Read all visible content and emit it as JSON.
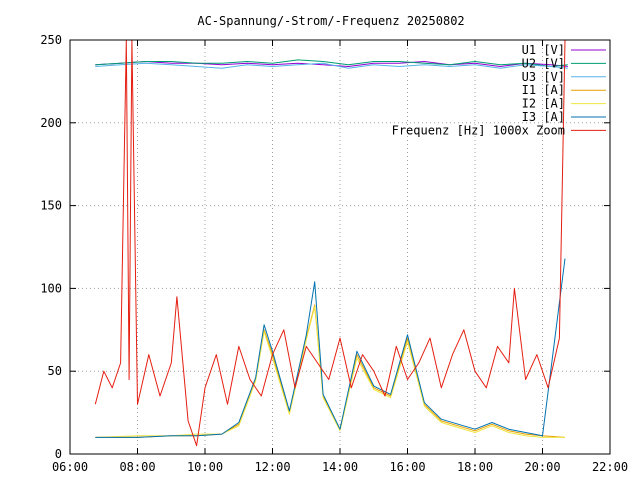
{
  "chart_data": {
    "type": "line",
    "title": "AC-Spannung/-Strom/-Frequenz 20250802",
    "xlabel": "",
    "ylabel": "",
    "x_range": [
      "06:00",
      "22:00"
    ],
    "ylim": [
      0,
      250
    ],
    "x_ticks": [
      "06:00",
      "08:00",
      "10:00",
      "12:00",
      "14:00",
      "16:00",
      "18:00",
      "20:00",
      "22:00"
    ],
    "y_ticks": [
      0,
      50,
      100,
      150,
      200,
      250
    ],
    "grid": true,
    "legend_position": "top-right",
    "x_data_span": [
      "06:45",
      "20:45"
    ],
    "series": [
      {
        "name": "U1 [V]",
        "color": "#9400d3",
        "points": [
          [
            "06:45",
            235
          ],
          [
            "07:30",
            236
          ],
          [
            "08:15",
            237
          ],
          [
            "09:00",
            236
          ],
          [
            "09:45",
            236
          ],
          [
            "10:30",
            235
          ],
          [
            "11:15",
            236
          ],
          [
            "12:00",
            235
          ],
          [
            "12:45",
            236
          ],
          [
            "13:30",
            235
          ],
          [
            "14:15",
            234
          ],
          [
            "15:00",
            236
          ],
          [
            "15:45",
            236
          ],
          [
            "16:30",
            237
          ],
          [
            "17:15",
            235
          ],
          [
            "18:00",
            236
          ],
          [
            "18:45",
            234
          ],
          [
            "19:30",
            236
          ],
          [
            "20:15",
            235
          ],
          [
            "20:45",
            234
          ]
        ]
      },
      {
        "name": "U2 [V]",
        "color": "#009e73",
        "points": [
          [
            "06:45",
            235
          ],
          [
            "07:30",
            236
          ],
          [
            "08:15",
            237
          ],
          [
            "09:00",
            237
          ],
          [
            "09:45",
            236
          ],
          [
            "10:30",
            236
          ],
          [
            "11:15",
            237
          ],
          [
            "12:00",
            236
          ],
          [
            "12:45",
            238
          ],
          [
            "13:30",
            237
          ],
          [
            "14:15",
            235
          ],
          [
            "15:00",
            237
          ],
          [
            "15:45",
            237
          ],
          [
            "16:30",
            236
          ],
          [
            "17:15",
            235
          ],
          [
            "18:00",
            237
          ],
          [
            "18:45",
            235
          ],
          [
            "19:30",
            236
          ],
          [
            "20:15",
            234
          ],
          [
            "20:45",
            235
          ]
        ]
      },
      {
        "name": "U3 [V]",
        "color": "#56b4e9",
        "points": [
          [
            "06:45",
            234
          ],
          [
            "07:30",
            235
          ],
          [
            "08:15",
            236
          ],
          [
            "09:00",
            235
          ],
          [
            "09:45",
            234
          ],
          [
            "10:30",
            233
          ],
          [
            "11:15",
            235
          ],
          [
            "12:00",
            234
          ],
          [
            "12:45",
            235
          ],
          [
            "13:30",
            236
          ],
          [
            "14:15",
            233
          ],
          [
            "15:00",
            235
          ],
          [
            "15:45",
            234
          ],
          [
            "16:30",
            235
          ],
          [
            "17:15",
            234
          ],
          [
            "18:00",
            235
          ],
          [
            "18:45",
            233
          ],
          [
            "19:30",
            235
          ],
          [
            "20:15",
            234
          ],
          [
            "20:45",
            233
          ]
        ]
      },
      {
        "name": "I1 [A]",
        "color": "#e69f00",
        "points": [
          [
            "06:45",
            10
          ],
          [
            "08:00",
            10
          ],
          [
            "09:00",
            11
          ],
          [
            "09:45",
            11
          ],
          [
            "10:30",
            12
          ],
          [
            "11:00",
            18
          ],
          [
            "11:30",
            45
          ],
          [
            "11:45",
            75
          ],
          [
            "12:00",
            60
          ],
          [
            "12:30",
            25
          ],
          [
            "13:00",
            70
          ],
          [
            "13:15",
            90
          ],
          [
            "13:30",
            35
          ],
          [
            "14:00",
            15
          ],
          [
            "14:30",
            60
          ],
          [
            "15:00",
            40
          ],
          [
            "15:30",
            35
          ],
          [
            "16:00",
            70
          ],
          [
            "16:30",
            30
          ],
          [
            "17:00",
            20
          ],
          [
            "17:30",
            17
          ],
          [
            "18:00",
            14
          ],
          [
            "18:30",
            18
          ],
          [
            "19:00",
            14
          ],
          [
            "19:30",
            12
          ],
          [
            "20:00",
            11
          ],
          [
            "20:40",
            10
          ]
        ]
      },
      {
        "name": "I2 [A]",
        "color": "#f0e442",
        "points": [
          [
            "06:45",
            10
          ],
          [
            "08:00",
            11
          ],
          [
            "09:00",
            11
          ],
          [
            "09:45",
            12
          ],
          [
            "10:30",
            12
          ],
          [
            "11:00",
            17
          ],
          [
            "11:30",
            44
          ],
          [
            "11:45",
            74
          ],
          [
            "12:00",
            58
          ],
          [
            "12:30",
            24
          ],
          [
            "13:00",
            69
          ],
          [
            "13:15",
            89
          ],
          [
            "13:30",
            34
          ],
          [
            "14:00",
            14
          ],
          [
            "14:30",
            58
          ],
          [
            "15:00",
            39
          ],
          [
            "15:30",
            34
          ],
          [
            "16:00",
            68
          ],
          [
            "16:30",
            29
          ],
          [
            "17:00",
            19
          ],
          [
            "17:30",
            16
          ],
          [
            "18:00",
            13
          ],
          [
            "18:30",
            17
          ],
          [
            "19:00",
            13
          ],
          [
            "19:30",
            11
          ],
          [
            "20:00",
            10
          ],
          [
            "20:40",
            10
          ]
        ]
      },
      {
        "name": "I3 [A]",
        "color": "#0072b2",
        "points": [
          [
            "06:45",
            10
          ],
          [
            "08:00",
            10
          ],
          [
            "09:00",
            11
          ],
          [
            "09:45",
            11
          ],
          [
            "10:30",
            12
          ],
          [
            "11:00",
            19
          ],
          [
            "11:30",
            46
          ],
          [
            "11:45",
            78
          ],
          [
            "12:00",
            62
          ],
          [
            "12:30",
            26
          ],
          [
            "13:00",
            72
          ],
          [
            "13:15",
            104
          ],
          [
            "13:30",
            36
          ],
          [
            "14:00",
            15
          ],
          [
            "14:30",
            62
          ],
          [
            "15:00",
            41
          ],
          [
            "15:30",
            36
          ],
          [
            "16:00",
            72
          ],
          [
            "16:30",
            31
          ],
          [
            "17:00",
            21
          ],
          [
            "17:30",
            18
          ],
          [
            "18:00",
            15
          ],
          [
            "18:30",
            19
          ],
          [
            "19:00",
            15
          ],
          [
            "19:30",
            13
          ],
          [
            "20:00",
            11
          ],
          [
            "20:40",
            118
          ]
        ]
      },
      {
        "name": "Frequenz [Hz] 1000x Zoom",
        "color": "#e51e10",
        "points": [
          [
            "06:45",
            30
          ],
          [
            "07:00",
            50
          ],
          [
            "07:15",
            40
          ],
          [
            "07:30",
            55
          ],
          [
            "07:40",
            250
          ],
          [
            "07:45",
            45
          ],
          [
            "07:50",
            250
          ],
          [
            "08:00",
            30
          ],
          [
            "08:20",
            60
          ],
          [
            "08:40",
            35
          ],
          [
            "09:00",
            55
          ],
          [
            "09:10",
            95
          ],
          [
            "09:30",
            20
          ],
          [
            "09:45",
            5
          ],
          [
            "10:00",
            40
          ],
          [
            "10:20",
            60
          ],
          [
            "10:40",
            30
          ],
          [
            "11:00",
            65
          ],
          [
            "11:20",
            45
          ],
          [
            "11:40",
            35
          ],
          [
            "12:00",
            60
          ],
          [
            "12:20",
            75
          ],
          [
            "12:40",
            40
          ],
          [
            "13:00",
            65
          ],
          [
            "13:20",
            55
          ],
          [
            "13:40",
            45
          ],
          [
            "14:00",
            70
          ],
          [
            "14:20",
            40
          ],
          [
            "14:40",
            60
          ],
          [
            "15:00",
            50
          ],
          [
            "15:20",
            35
          ],
          [
            "15:40",
            65
          ],
          [
            "16:00",
            45
          ],
          [
            "16:20",
            55
          ],
          [
            "16:40",
            70
          ],
          [
            "17:00",
            40
          ],
          [
            "17:20",
            60
          ],
          [
            "17:40",
            75
          ],
          [
            "18:00",
            50
          ],
          [
            "18:20",
            40
          ],
          [
            "18:40",
            65
          ],
          [
            "19:00",
            55
          ],
          [
            "19:10",
            100
          ],
          [
            "19:30",
            45
          ],
          [
            "19:50",
            60
          ],
          [
            "20:10",
            40
          ],
          [
            "20:30",
            70
          ],
          [
            "20:40",
            250
          ]
        ]
      }
    ]
  }
}
